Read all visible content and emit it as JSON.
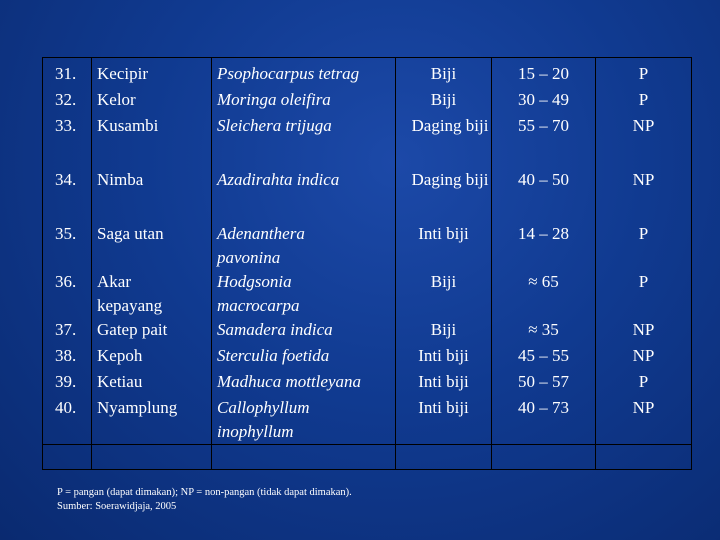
{
  "rows": [
    {
      "no": "31.",
      "name": "Kecipir",
      "sci": "Psophocarpus tetrag",
      "part": "Biji",
      "range": "15 – 20",
      "type": "P"
    },
    {
      "no": "32.",
      "name": "Kelor",
      "sci": "Moringa oleifira",
      "part": "Biji",
      "range": "30 – 49",
      "type": "P"
    },
    {
      "no": "33.",
      "name": "Kusambi",
      "sci": "Sleichera trijuga",
      "part": "Daging biji",
      "range": "55 – 70",
      "type": "NP"
    },
    {
      "no": "34.",
      "name": "Nimba",
      "sci": "Azadirahta indica",
      "part": "Daging biji",
      "range": "40 – 50",
      "type": "NP"
    },
    {
      "no": "35.",
      "name": "Saga utan",
      "sci": "Adenanthera pavonina",
      "part": "Inti biji",
      "range": "14 – 28",
      "type": "P"
    },
    {
      "no": "36.",
      "name": "Akar kepayang",
      "sci": "Hodgsonia macrocarpa",
      "part": "Biji",
      "range": "≈ 65",
      "type": "P"
    },
    {
      "no": "37.",
      "name": "Gatep pait",
      "sci": "Samadera indica",
      "part": "Biji",
      "range": "≈ 35",
      "type": "NP"
    },
    {
      "no": "38.",
      "name": "Kepoh",
      "sci": "Sterculia foetida",
      "part": "Inti biji",
      "range": "45 – 55",
      "type": "NP"
    },
    {
      "no": "39.",
      "name": "Ketiau",
      "sci": "Madhuca mottleyana",
      "part": "Inti biji",
      "range": "50 – 57",
      "type": "P"
    },
    {
      "no": "40.",
      "name": "Nyamplung",
      "sci": "Callophyllum inophyllum",
      "part": "Inti biji",
      "range": "40 – 73",
      "type": "NP"
    }
  ],
  "footnote": {
    "legend": "P = pangan (dapat dimakan); NP = non-pangan (tidak dapat dimakan).",
    "source": "Sumber: Soerawidjaja, 2005"
  },
  "colors": {
    "background": "#123c93",
    "grid": "#000000",
    "text": "#ffffff"
  }
}
